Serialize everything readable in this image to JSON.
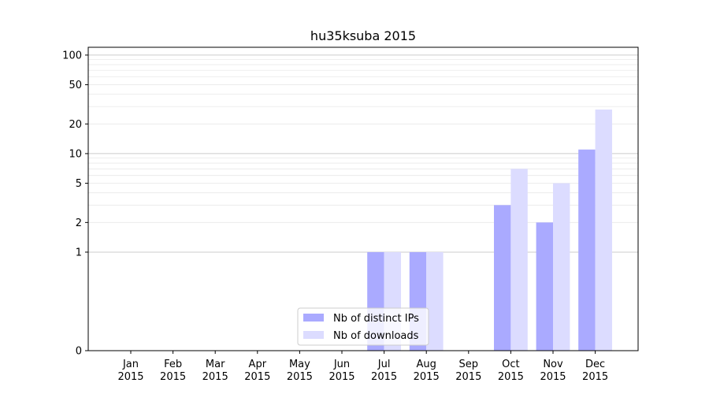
{
  "chart_data": {
    "type": "bar",
    "title": "hu35ksuba 2015",
    "xlabel": "",
    "ylabel": "",
    "yscale": "symlog",
    "ylim": [
      0,
      120
    ],
    "categories": [
      [
        "Jan",
        "2015"
      ],
      [
        "Feb",
        "2015"
      ],
      [
        "Mar",
        "2015"
      ],
      [
        "Apr",
        "2015"
      ],
      [
        "May",
        "2015"
      ],
      [
        "Jun",
        "2015"
      ],
      [
        "Jul",
        "2015"
      ],
      [
        "Aug",
        "2015"
      ],
      [
        "Sep",
        "2015"
      ],
      [
        "Oct",
        "2015"
      ],
      [
        "Nov",
        "2015"
      ],
      [
        "Dec",
        "2015"
      ]
    ],
    "yticks": [
      0,
      1,
      2,
      5,
      10,
      20,
      50,
      100
    ],
    "ytick_labels": [
      "0",
      "1",
      "2",
      "5",
      "10",
      "20",
      "50",
      "100"
    ],
    "series": [
      {
        "name": "Nb of distinct IPs",
        "color": "#aaaaff",
        "values": [
          0,
          0,
          0,
          0,
          0,
          0,
          1,
          1,
          0,
          3,
          2,
          11
        ]
      },
      {
        "name": "Nb of downloads",
        "color": "#dcdcff",
        "values": [
          0,
          0,
          0,
          0,
          0,
          0,
          1,
          1,
          0,
          7,
          5,
          28
        ]
      }
    ],
    "grid": true,
    "legend_position": "lower-center"
  }
}
